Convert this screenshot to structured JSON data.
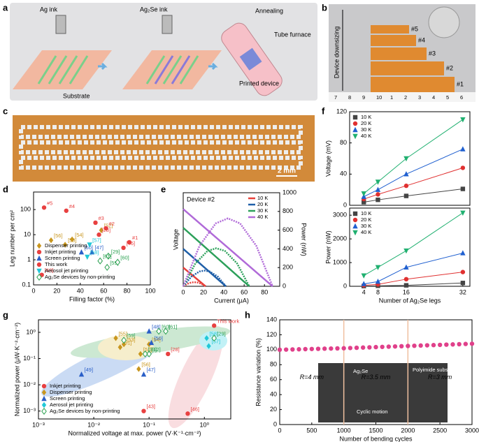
{
  "panel_labels": [
    "a",
    "b",
    "c",
    "d",
    "e",
    "f",
    "g",
    "h"
  ],
  "illustrations": {
    "a": {
      "ag_ink": "Ag ink",
      "ag2se_ink": "Ag₂Se ink",
      "annealing": "Annealing",
      "tube_furnace": "Tube furnace",
      "substrate": "Substrate",
      "printed_device": "Printed device"
    },
    "b": {
      "arrow_label": "Device downsizing",
      "devices": [
        "#5",
        "#4",
        "#3",
        "#2",
        "#1"
      ],
      "ruler": [
        "7",
        "8",
        "9",
        "10",
        "1",
        "2",
        "3",
        "4",
        "5",
        "6"
      ]
    },
    "c": {
      "scale_bar": "2 mm"
    }
  },
  "chart_data": [
    {
      "type": "scatter",
      "ylog": true,
      "xlim": [
        0,
        100
      ],
      "xticks": [
        0,
        20,
        40,
        60,
        80,
        100
      ],
      "ylim": [
        0.1,
        500
      ],
      "yticks": [
        0.1,
        1,
        10,
        100
      ],
      "xlabel": "Filling factor (%)",
      "ylabel": "Leg number per cm²",
      "legend": "lower-left",
      "series": [
        {
          "name": "Dispenser printing",
          "color": "#c8961e",
          "marker": "diamond",
          "x": [
            15,
            27,
            33,
            58
          ],
          "values": [
            6,
            4,
            6.5,
            15
          ],
          "point_labels": [
            "[56]",
            "[53]",
            "[54]",
            "[52]"
          ]
        },
        {
          "name": "Inkjet printing",
          "color": "#e84040",
          "marker": "circle",
          "x": [
            7,
            56,
            77
          ],
          "values": [
            0.25,
            10,
            3
          ],
          "point_labels": [
            "[43]",
            "[28]",
            "[46]"
          ]
        },
        {
          "name": "Screen printing",
          "color": "#2a5fc8",
          "marker": "triangle",
          "x": [
            41,
            50
          ],
          "values": [
            2,
            2
          ],
          "point_labels": [
            "[50]",
            "[47]"
          ]
        },
        {
          "name": "This work",
          "color": "#e84040",
          "marker": "circle",
          "x": [
            9,
            28,
            53,
            62,
            82
          ],
          "values": [
            120,
            90,
            30,
            18,
            5
          ],
          "point_labels": [
            "#5",
            "#4",
            "#3",
            "#2",
            "#1"
          ]
        },
        {
          "name": "Aerosol jet printing",
          "color": "#20c8d8",
          "marker": "triangle-down",
          "x": [
            48,
            46
          ],
          "values": [
            4,
            1.3
          ],
          "point_labels": [
            "[57]",
            "[58]"
          ]
        },
        {
          "name": "Ag₂Se devices by non-printing",
          "color": "#2aa050",
          "marker": "open-diamond",
          "x": [
            64,
            57,
            63,
            72
          ],
          "values": [
            1.4,
            0.9,
            0.5,
            0.8
          ],
          "point_labels": [
            "[29]",
            "[61]",
            "[59]",
            "[60]"
          ]
        }
      ]
    },
    {
      "type": "line",
      "annotation": "Device #2",
      "xlim": [
        0,
        95
      ],
      "xticks": [
        0,
        20,
        40,
        60,
        80
      ],
      "ylim": [
        0,
        40
      ],
      "y2lim": [
        0,
        1000
      ],
      "y2ticks": [
        0,
        200,
        400,
        600,
        800,
        1000
      ],
      "xlabel": "Current (μA)",
      "ylabel": "Voltage",
      "y2label": "Power (nW)",
      "legend": "upper-right",
      "series": [
        {
          "name": "10 K",
          "color": "#e8403a",
          "x": [
            0,
            4,
            8,
            11,
            14,
            18,
            22
          ],
          "values": [
            8,
            6.55,
            5.09,
            4,
            2.91,
            1.45,
            0
          ],
          "power": [
            0,
            26.2,
            40.7,
            44,
            40.7,
            26.1,
            0
          ]
        },
        {
          "name": "20 K",
          "color": "#1f5fa8",
          "x": [
            0,
            8,
            16,
            21,
            26,
            34,
            42
          ],
          "values": [
            16,
            12.95,
            9.9,
            8,
            6.1,
            3.05,
            0
          ],
          "power": [
            0,
            103.6,
            158.4,
            168,
            158.6,
            103.7,
            0
          ]
        },
        {
          "name": "30 K",
          "color": "#2ca05a",
          "x": [
            0,
            12,
            24,
            32.5,
            41,
            53,
            65
          ],
          "values": [
            25,
            20.38,
            15.77,
            12.5,
            9.23,
            4.62,
            0
          ],
          "power": [
            0,
            244.6,
            378.5,
            406.3,
            378.4,
            244.9,
            0
          ]
        },
        {
          "name": "40 K",
          "color": "#b06ad8",
          "x": [
            0,
            16,
            32,
            44,
            56,
            72,
            88
          ],
          "values": [
            33,
            27,
            21,
            16.5,
            12,
            6,
            0
          ],
          "power": [
            0,
            432,
            672,
            726,
            672,
            432,
            0
          ]
        }
      ]
    },
    {
      "type": "line",
      "x": [
        4,
        8,
        16,
        32
      ],
      "xlim": [
        0,
        34
      ],
      "ylim": [
        0,
        120
      ],
      "yticks": [
        0,
        40,
        80,
        120
      ],
      "ylabel": "Voltage (mV)",
      "legend": "upper-left",
      "series": [
        {
          "name": "10 K",
          "color": "#444444",
          "marker": "square",
          "values": [
            4,
            7,
            12,
            21
          ]
        },
        {
          "name": "20 K",
          "color": "#e03030",
          "marker": "circle",
          "values": [
            8,
            14,
            25,
            48
          ]
        },
        {
          "name": "30 K",
          "color": "#2060d0",
          "marker": "triangle",
          "values": [
            11,
            20,
            40,
            72
          ]
        },
        {
          "name": "40 K",
          "color": "#20b070",
          "marker": "triangle-down",
          "values": [
            15,
            30,
            60,
            110
          ]
        }
      ]
    },
    {
      "type": "line",
      "x": [
        4,
        8,
        16,
        32
      ],
      "xlim": [
        0,
        34
      ],
      "xticks": [
        4,
        8,
        16,
        32
      ],
      "ylim": [
        0,
        3300
      ],
      "yticks": [
        0,
        1000,
        2000,
        3000
      ],
      "xlabel": "Number of Ag₂Se legs",
      "ylabel": "Power (nW)",
      "legend": "upper-left",
      "series": [
        {
          "name": "10 K",
          "color": "#444444",
          "marker": "square",
          "values": [
            10,
            20,
            40,
            140
          ]
        },
        {
          "name": "20 K",
          "color": "#e03030",
          "marker": "circle",
          "values": [
            40,
            80,
            300,
            600
          ]
        },
        {
          "name": "30 K",
          "color": "#2060d0",
          "marker": "triangle",
          "values": [
            100,
            200,
            800,
            1400
          ]
        },
        {
          "name": "40 K",
          "color": "#20b070",
          "marker": "triangle-down",
          "values": [
            450,
            800,
            1500,
            3100
          ]
        }
      ]
    },
    {
      "type": "scatter",
      "xlog": true,
      "ylog": true,
      "xlim": [
        0.001,
        3
      ],
      "ylim": [
        0.0005,
        3
      ],
      "xticks": [
        {
          "value": 0.001,
          "label": "10⁻³"
        },
        {
          "value": 0.01,
          "label": "10⁻²"
        },
        {
          "value": 0.1,
          "label": "10⁻¹"
        },
        {
          "value": 1,
          "label": "10⁰"
        }
      ],
      "yticks": [
        {
          "value": 0.001,
          "label": "10⁻³"
        },
        {
          "value": 0.01,
          "label": "10⁻²"
        },
        {
          "value": 0.1,
          "label": "10⁻¹"
        },
        {
          "value": 1,
          "label": "10⁰"
        }
      ],
      "xlabel": "Normalized voltage at max. power (V·K⁻¹·cm⁻²)",
      "ylabel": "Normalized power (μW·K⁻²·cm⁻²)",
      "legend": "lower-left",
      "series": [
        {
          "name": "Inkjet printing",
          "color": "#e84040",
          "marker": "circle",
          "x": [
            1.5,
            0.22,
            0.08,
            0.5
          ],
          "values": [
            1.8,
            0.15,
            0.001,
            0.0008
          ],
          "point_labels": [
            "This work",
            "[28]",
            "[43]",
            "[46]"
          ]
        },
        {
          "name": "Dispenser printing",
          "color": "#c8961e",
          "marker": "diamond",
          "x": [
            0.025,
            0.03,
            0.035,
            0.065,
            0.1,
            0.07
          ],
          "values": [
            0.6,
            0.27,
            0.35,
            0.04,
            0.35,
            0.15
          ],
          "point_labels": [
            "[55]",
            "[51]",
            "[53]",
            "[56]",
            "[54]",
            "[52]"
          ]
        },
        {
          "name": "Screen printing",
          "color": "#2a5fc8",
          "marker": "triangle",
          "x": [
            0.006,
            0.1,
            0.11,
            0.08
          ],
          "values": [
            0.025,
            1.1,
            0.4,
            0.025
          ],
          "point_labels": [
            "[49]",
            "[48]",
            "[50]",
            "[47]"
          ]
        },
        {
          "name": "Aerosol jet printing",
          "color": "#20c8d8",
          "marker": "diamond",
          "x": [
            1.1,
            1.2
          ],
          "values": [
            0.6,
            0.3
          ],
          "point_labels": [
            "[58]",
            "[57]"
          ]
        },
        {
          "name": "Ag₂Se devices by non-printing",
          "color": "#2aa050",
          "marker": "open-diamond",
          "x": [
            0.035,
            0.15,
            0.2,
            0.1,
            0.085,
            1.5
          ],
          "values": [
            0.5,
            1.1,
            1.1,
            0.15,
            0.15,
            0.6
          ],
          "point_labels": [
            "[59]",
            "[60]",
            "[61]",
            "[12]",
            "[39]",
            "[29]"
          ]
        }
      ]
    },
    {
      "type": "scatter",
      "x": [
        0,
        100,
        200,
        300,
        400,
        500,
        600,
        700,
        800,
        900,
        1000,
        1100,
        1200,
        1300,
        1400,
        1500,
        1600,
        1700,
        1800,
        1900,
        2000,
        2100,
        2200,
        2300,
        2400,
        2500,
        2600,
        2700,
        2800,
        2900,
        3000
      ],
      "xlim": [
        0,
        3000
      ],
      "xticks": [
        0,
        500,
        1000,
        1500,
        2000,
        2500,
        3000
      ],
      "ylim": [
        0,
        140
      ],
      "yticks": [
        0,
        20,
        40,
        60,
        80,
        100,
        120,
        140
      ],
      "xlabel": "Number of bending cycles",
      "ylabel": "Resistance variation (%)",
      "region_bounds": [
        1000,
        2000
      ],
      "region_labels": [
        "R=4 mm",
        "R=3.5 mm",
        "R=3 mm"
      ],
      "inset_labels": [
        "Ag₂Se",
        "Polyimide substrate",
        "Cyclic motion"
      ],
      "series": [
        {
          "color": "#e0408a",
          "marker": "circle",
          "values": [
            100.0,
            100.2,
            100.4,
            100.6,
            100.8,
            101.0,
            101.2,
            101.4,
            101.6,
            101.8,
            102.0,
            102.3,
            102.6,
            102.9,
            103.2,
            103.5,
            103.8,
            104.1,
            104.4,
            104.7,
            105.0,
            105.3,
            105.6,
            105.9,
            106.2,
            106.5,
            106.8,
            107.1,
            107.4,
            107.7,
            108.0
          ]
        }
      ]
    }
  ]
}
